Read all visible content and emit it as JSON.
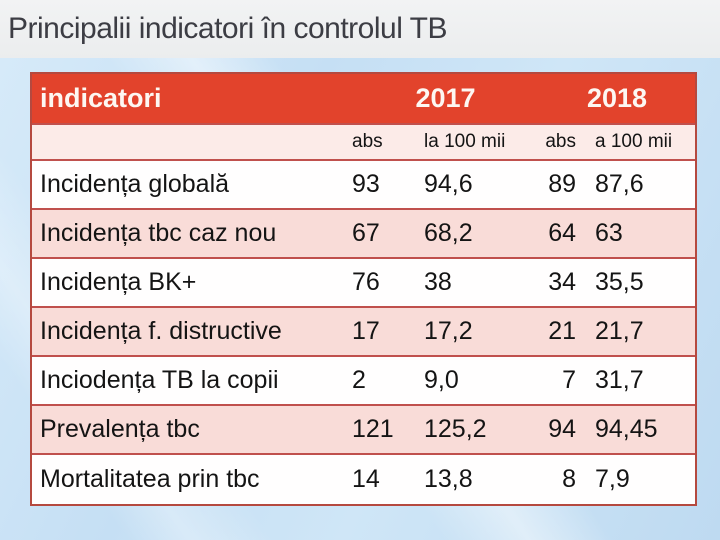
{
  "slide": {
    "title": "Principalii indicatori în controlul TB"
  },
  "table": {
    "header": {
      "indicators_label": "indicatori",
      "year1": "2017",
      "year2": "2018"
    },
    "subheader": {
      "abs1": "abs",
      "rate1": "la 100 mii",
      "abs2": "abs",
      "rate2": "a 100 mii"
    },
    "rows": [
      {
        "name": "Incidența globală",
        "abs_2017": "93",
        "rate_2017": "94,6",
        "abs_2018": "89",
        "rate_2018": "87,6"
      },
      {
        "name": "Incidența tbc caz nou",
        "abs_2017": "67",
        "rate_2017": "68,2",
        "abs_2018": "64",
        "rate_2018": "63"
      },
      {
        "name": "Incidența BK+",
        "abs_2017": "76",
        "rate_2017": "38",
        "abs_2018": "34",
        "rate_2018": "35,5"
      },
      {
        "name": "Incidența f. distructive",
        "abs_2017": "17",
        "rate_2017": "17,2",
        "abs_2018": "21",
        "rate_2018": "21,7"
      },
      {
        "name": "Inciodența TB la copii",
        "abs_2017": "2",
        "rate_2017": "9,0",
        "abs_2018": "7",
        "rate_2018": "31,7"
      },
      {
        "name": "Prevalența tbc",
        "abs_2017": "121",
        "rate_2017": "125,2",
        "abs_2018": "94",
        "rate_2018": "94,45"
      },
      {
        "name": "Mortalitatea prin tbc",
        "abs_2017": "14",
        "rate_2017": "13,8",
        "abs_2018": "8",
        "rate_2018": "7,9"
      }
    ]
  },
  "colors": {
    "header_bg": "#e2432c",
    "row_pink": "#f9dcd8",
    "subheader_pink": "#fcebe8",
    "border_red": "#b5493f",
    "separator_red": "#c0504d",
    "background_blue": "#c9e2f4",
    "title_band_gray": "#eef0f1",
    "title_text": "#3c3d44"
  }
}
